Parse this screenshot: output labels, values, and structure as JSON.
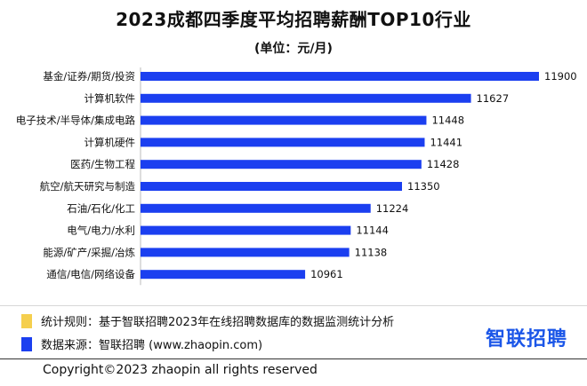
{
  "chart_data": {
    "type": "bar",
    "orientation": "horizontal",
    "title": "2023成都四季度平均招聘薪酬TOP10行业",
    "subtitle": "(单位：元/月)",
    "categories": [
      "基金/证券/期货/投资",
      "计算机软件",
      "电子技术/半导体/集成电路",
      "计算机硬件",
      "医药/生物工程",
      "航空/航天研究与制造",
      "石油/石化/化工",
      "电气/电力/水利",
      "能源/矿产/采掘/冶炼",
      "通信/电信/网络设备"
    ],
    "values": [
      11900,
      11627,
      11448,
      11441,
      11428,
      11350,
      11224,
      11144,
      11138,
      10961
    ],
    "bar_color": "#1b3ff0",
    "grid": false,
    "legend": "none"
  },
  "notes": {
    "rule_label": "统计规则：基于智联招聘2023年在线招聘数据库的数据监测统计分析",
    "rule_color": "#f5cf4e",
    "source_label": "数据来源：智联招聘 (www.zhaopin.com)",
    "source_color": "#1b3ff0"
  },
  "logo": {
    "text": "智联招聘",
    "color": "#1b56e8"
  },
  "copyright": "Copyright©2023 zhaopin all rights reserved"
}
